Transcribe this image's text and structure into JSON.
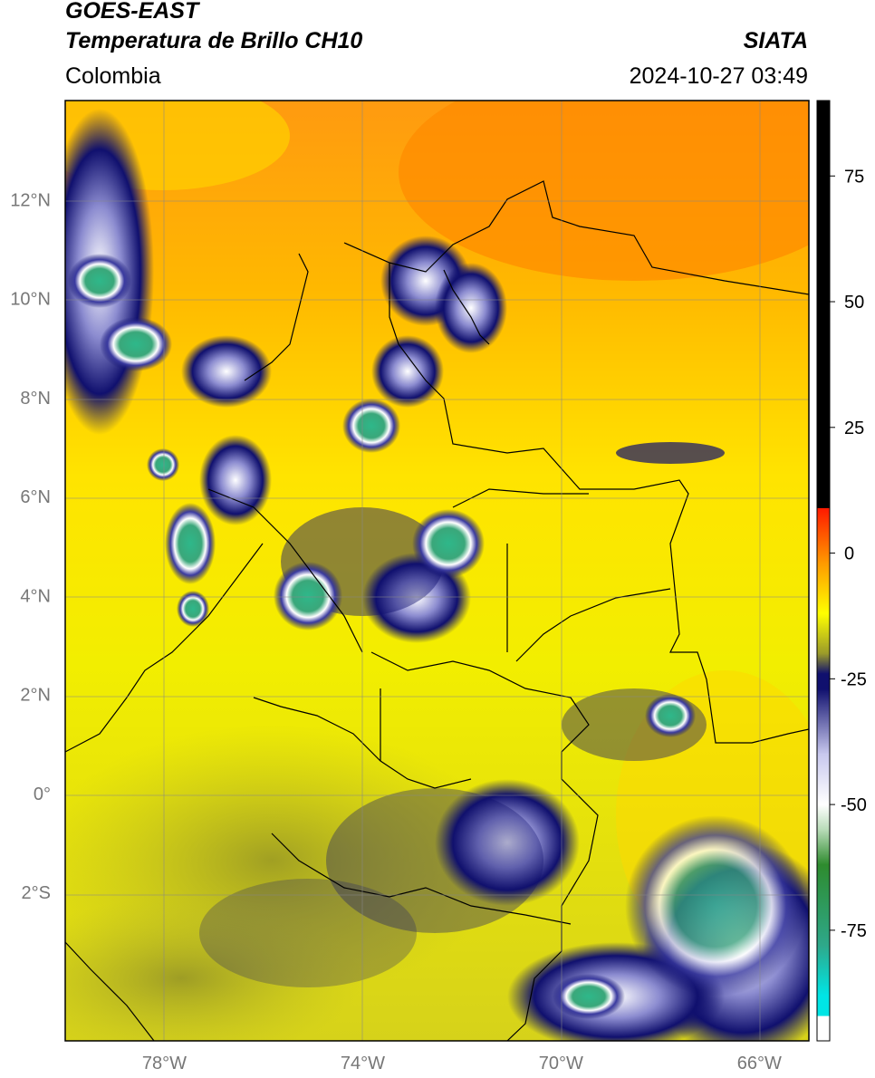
{
  "header": {
    "satellite": "GOES-EAST",
    "product": "Temperatura de Brillo CH10",
    "region": "Colombia",
    "organization": "SIATA",
    "datetime": "2024-10-27 03:49"
  },
  "map": {
    "lat_ticks": [
      "12°N",
      "10°N",
      "8°N",
      "6°N",
      "4°N",
      "2°N",
      "0°",
      "2°S"
    ],
    "lon_ticks": [
      "78°W",
      "74°W",
      "70°W",
      "66°W"
    ],
    "lat_values": [
      12,
      10,
      8,
      6,
      4,
      2,
      0,
      -2
    ],
    "lon_values": [
      -78,
      -74,
      -70,
      -66
    ],
    "extent": {
      "lon_min": -80,
      "lon_max": -65,
      "lat_min": -5,
      "lat_max": 14
    }
  },
  "colorbar": {
    "ticks": [
      "75",
      "50",
      "25",
      "0",
      "-25",
      "-50",
      "-75"
    ],
    "tick_values": [
      75,
      50,
      25,
      0,
      -25,
      -50,
      -75
    ],
    "range": [
      -97,
      90
    ],
    "colors": {
      "hot": "#000000",
      "red": "#ff1a00",
      "orange": "#ff9a00",
      "yellow": "#ffff00",
      "olive": "#9a9a2a",
      "navy": "#10106e",
      "white": "#ffffff",
      "green": "#2e8b2e",
      "cyan": "#00e5e5"
    }
  }
}
